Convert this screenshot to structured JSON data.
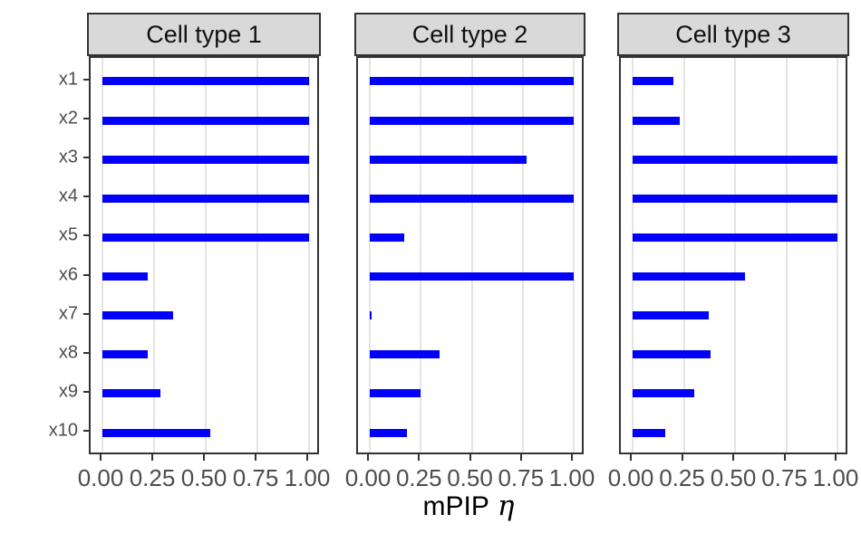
{
  "chart_data": {
    "type": "bar",
    "orientation": "horizontal",
    "xlabel": "mPIP η",
    "xlabel_main": "mPIP",
    "xlabel_symbol": "η",
    "xlim": [
      0,
      1
    ],
    "x_tick_values": [
      0,
      0.25,
      0.5,
      0.75,
      1
    ],
    "x_tick_labels": [
      "0.00",
      "0.25",
      "0.50",
      "0.75",
      "1.00"
    ],
    "categories": [
      "x1",
      "x2",
      "x3",
      "x4",
      "x5",
      "x6",
      "x7",
      "x8",
      "x9",
      "x10"
    ],
    "facets": [
      {
        "label": "Cell type 1",
        "values": [
          1.0,
          1.0,
          1.0,
          1.0,
          1.0,
          0.22,
          0.34,
          0.22,
          0.28,
          0.52
        ]
      },
      {
        "label": "Cell type 2",
        "values": [
          1.0,
          1.0,
          0.77,
          1.0,
          0.17,
          1.0,
          0.01,
          0.34,
          0.25,
          0.18
        ]
      },
      {
        "label": "Cell type 3",
        "values": [
          0.2,
          0.23,
          1.0,
          1.0,
          1.0,
          0.55,
          0.37,
          0.38,
          0.3,
          0.16
        ]
      }
    ],
    "legend": "none",
    "grid": "vertical-major-only",
    "colors": {
      "bar": "#0000fb",
      "strip_fill": "#d9d9d9",
      "border": "#333333",
      "gridline": "#e4e4e4",
      "axis_text": "#4d4d4d",
      "axis_title": "#000000"
    }
  }
}
